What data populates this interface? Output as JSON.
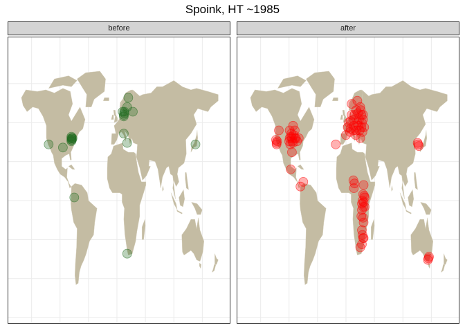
{
  "title": "Spoink, HT ~1985",
  "colors": {
    "land": "#c4bca3",
    "grid": "#ebebeb",
    "before_point": "#1d6a1d",
    "after_point": "#ff0000",
    "strip_bg": "#d4d4d4"
  },
  "facets": [
    {
      "key": "before",
      "label": "before",
      "points": [
        [
          -80,
          40
        ],
        [
          -80,
          39
        ],
        [
          -79,
          40
        ],
        [
          -79,
          39
        ],
        [
          -80,
          41
        ],
        [
          -78,
          40
        ],
        [
          -80,
          38
        ],
        [
          -120,
          36
        ],
        [
          -95,
          34
        ],
        [
          -75,
          2
        ],
        [
          12,
          55
        ],
        [
          13,
          56
        ],
        [
          12,
          54
        ],
        [
          13,
          57
        ],
        [
          18,
          60
        ],
        [
          28,
          57
        ],
        [
          10,
          57
        ],
        [
          20,
          66
        ],
        [
          12,
          43
        ],
        [
          18,
          37
        ],
        [
          138,
          36
        ],
        [
          18,
          -34
        ]
      ]
    },
    {
      "key": "after",
      "label": "after",
      "points": [
        [
          -122,
          37
        ],
        [
          -121,
          38
        ],
        [
          -123,
          39
        ],
        [
          -122,
          36
        ],
        [
          -118,
          45
        ],
        [
          -99,
          40
        ],
        [
          -97,
          41
        ],
        [
          -95,
          40
        ],
        [
          -94,
          38
        ],
        [
          -92,
          42
        ],
        [
          -90,
          40
        ],
        [
          -93,
          37
        ],
        [
          -96,
          43
        ],
        [
          -100,
          38
        ],
        [
          -88,
          40
        ],
        [
          -98,
          36
        ],
        [
          -95,
          31
        ],
        [
          -99,
          45
        ],
        [
          -93,
          48
        ],
        [
          -86,
          38
        ],
        [
          -90,
          45
        ],
        [
          -83,
          40
        ],
        [
          -97,
          20
        ],
        [
          -80,
          9
        ],
        [
          -75,
          12
        ],
        [
          -18,
          36
        ],
        [
          0,
          42
        ],
        [
          3,
          47
        ],
        [
          5,
          50
        ],
        [
          8,
          51
        ],
        [
          10,
          55
        ],
        [
          15,
          55
        ],
        [
          18,
          58
        ],
        [
          20,
          64
        ],
        [
          10,
          62
        ],
        [
          14,
          48
        ],
        [
          13,
          45
        ],
        [
          20,
          50
        ],
        [
          22,
          48
        ],
        [
          18,
          45
        ],
        [
          23,
          52
        ],
        [
          27,
          55
        ],
        [
          25,
          60
        ],
        [
          28,
          50
        ],
        [
          30,
          52
        ],
        [
          24,
          45
        ],
        [
          8,
          46
        ],
        [
          21,
          56
        ],
        [
          27,
          47
        ],
        [
          17,
          42
        ],
        [
          25,
          40
        ],
        [
          30,
          55
        ],
        [
          26,
          58
        ],
        [
          7,
          44
        ],
        [
          14,
          52
        ],
        [
          32,
          47
        ],
        [
          29,
          44
        ],
        [
          13,
          13
        ],
        [
          15,
          11
        ],
        [
          14,
          8
        ],
        [
          31,
          10
        ],
        [
          32,
          3
        ],
        [
          30,
          4
        ],
        [
          33,
          2
        ],
        [
          29,
          0
        ],
        [
          31,
          -1
        ],
        [
          30,
          -4
        ],
        [
          28,
          -2
        ],
        [
          27,
          -10
        ],
        [
          30,
          -11
        ],
        [
          31,
          -14
        ],
        [
          28,
          -19
        ],
        [
          29,
          -22
        ],
        [
          30,
          -24
        ],
        [
          28,
          -28
        ],
        [
          31,
          -24
        ],
        [
          25,
          -30
        ],
        [
          28,
          -6
        ],
        [
          33,
          -4
        ],
        [
          127,
          36
        ],
        [
          126,
          37
        ],
        [
          128,
          35
        ],
        [
          145,
          -37
        ],
        [
          144,
          -38
        ],
        [
          146,
          -36
        ]
      ]
    }
  ]
}
